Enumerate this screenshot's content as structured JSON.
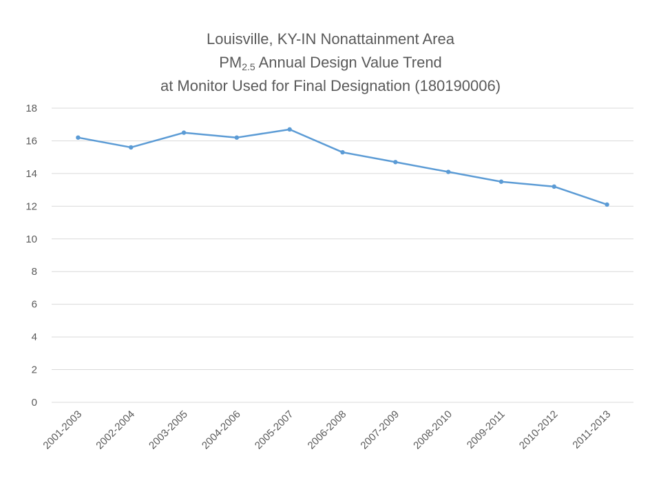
{
  "chart_data": {
    "type": "line",
    "title_line1": "Louisville, KY-IN Nonattainment Area",
    "title_line2_prefix": "PM",
    "title_line2_sub": "2.5",
    "title_line2_suffix": " Annual Design Value Trend",
    "title_line3": "at Monitor Used for Final Designation (180190006)",
    "categories": [
      "2001-2003",
      "2002-2004",
      "2003-2005",
      "2004-2006",
      "2005-2007",
      "2006-2008",
      "2007-2009",
      "2008-2010",
      "2009-2011",
      "2010-2012",
      "2011-2013"
    ],
    "series": [
      {
        "values": [
          16.2,
          15.6,
          16.5,
          16.2,
          16.7,
          15.3,
          14.7,
          14.1,
          13.5,
          13.2,
          12.1
        ],
        "color": "#5B9BD5"
      }
    ],
    "yticks": [
      0,
      2,
      4,
      6,
      8,
      10,
      12,
      14,
      16,
      18
    ],
    "ylim": [
      0,
      18
    ],
    "grid": true,
    "legend": "none"
  }
}
